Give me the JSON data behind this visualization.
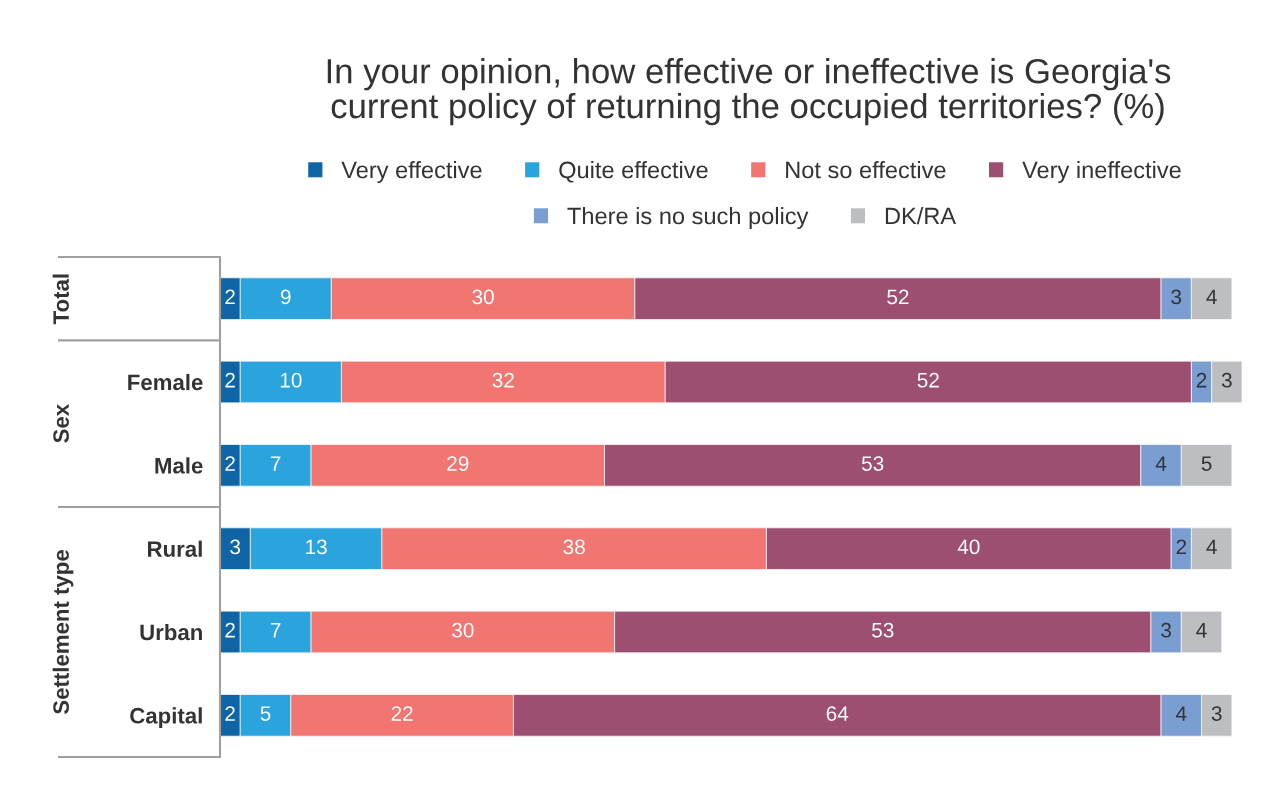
{
  "chart_data": {
    "type": "bar",
    "orientation": "horizontal",
    "stacked": true,
    "title": "In your opinion, how effective or ineffective is Georgia's\ncurrent policy of returning the occupied territories? (%)",
    "categories": [
      null,
      "Female",
      "Male",
      "Rural",
      "Urban",
      "Capital"
    ],
    "series": [
      {
        "name": "Very effective",
        "color": "#0e64a5",
        "values": [
          2,
          2,
          2,
          3,
          2,
          2
        ]
      },
      {
        "name": "Quite effective",
        "color": "#2ba3dc",
        "values": [
          9,
          10,
          7,
          13,
          7,
          5
        ]
      },
      {
        "name": "Not so effective",
        "color": "#f17570",
        "values": [
          30,
          32,
          29,
          38,
          30,
          22
        ]
      },
      {
        "name": "Very ineffective",
        "color": "#9d4f72",
        "values": [
          52,
          52,
          53,
          40,
          53,
          64
        ]
      },
      {
        "name": "There is no such policy",
        "color": "#7b9ed2",
        "values": [
          3,
          2,
          4,
          2,
          3,
          4
        ]
      },
      {
        "name": "DK/RA",
        "color": "#bdbec2",
        "values": [
          4,
          3,
          5,
          4,
          4,
          3
        ]
      }
    ],
    "data_labels": true,
    "legend": "top",
    "tick_labels": "y",
    "annotations": [
      "Total",
      "Sex",
      "Settlement type"
    ]
  }
}
